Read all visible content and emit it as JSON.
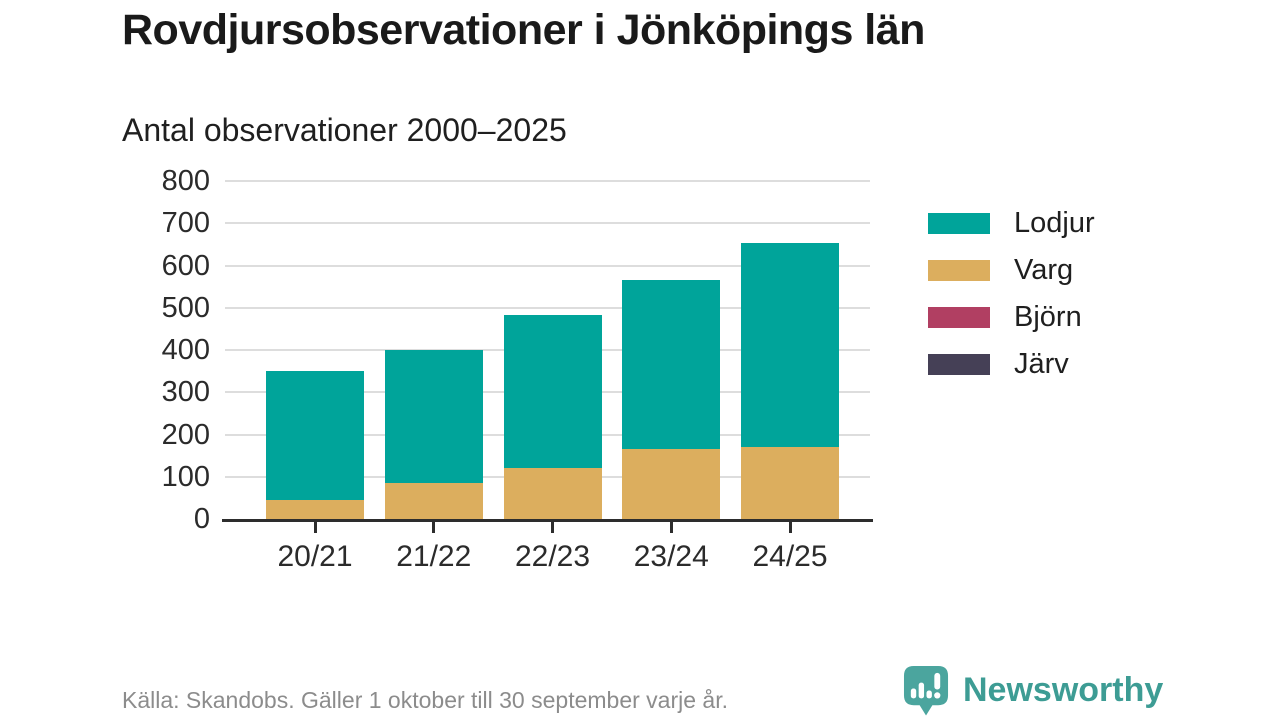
{
  "header": {
    "title": "Rovdjursobservationer i Jönköpings län",
    "subtitle": "Antal observationer 2000–2025"
  },
  "chart_data": {
    "type": "bar",
    "stacked": true,
    "title": "Rovdjursobservationer i Jönköpings län",
    "subtitle": "Antal observationer 2000–2025",
    "categories": [
      "20/21",
      "21/22",
      "22/23",
      "23/24",
      "24/25"
    ],
    "series": [
      {
        "name": "Lodjur",
        "color": "#00a49a",
        "values": [
          305,
          315,
          363,
          400,
          483
        ]
      },
      {
        "name": "Varg",
        "color": "#dcae5e",
        "values": [
          45,
          85,
          120,
          165,
          170
        ]
      },
      {
        "name": "Björn",
        "color": "#b13f62",
        "values": [
          0,
          0,
          0,
          0,
          0
        ]
      },
      {
        "name": "Järv",
        "color": "#454056",
        "values": [
          0,
          0,
          0,
          0,
          0
        ]
      }
    ],
    "stack_order_bottom_to_top": [
      "Järv",
      "Björn",
      "Varg",
      "Lodjur"
    ],
    "xlabel": "",
    "ylabel": "",
    "ylim": [
      0,
      800
    ],
    "ytick_step": 100,
    "yticks": [
      "0",
      "100",
      "200",
      "300",
      "400",
      "500",
      "600",
      "700",
      "800"
    ],
    "grid": true,
    "legend_position": "right"
  },
  "footer": {
    "source": "Källa: Skandobs. Gäller 1 oktober till 30 september varje år.",
    "brand": "Newsworthy"
  },
  "icons": {
    "logo": "newsworthy-speech-bubble-chart-icon"
  },
  "colors": {
    "lodjur": "#00a49a",
    "varg": "#dcae5e",
    "bjorn": "#b13f62",
    "jarv": "#454056",
    "brand_teal": "#3d9c94",
    "logo_teal": "#4ba59e",
    "grid": "#dddddd",
    "axis": "#2d2d2d",
    "muted_text": "#8c8c8c"
  }
}
